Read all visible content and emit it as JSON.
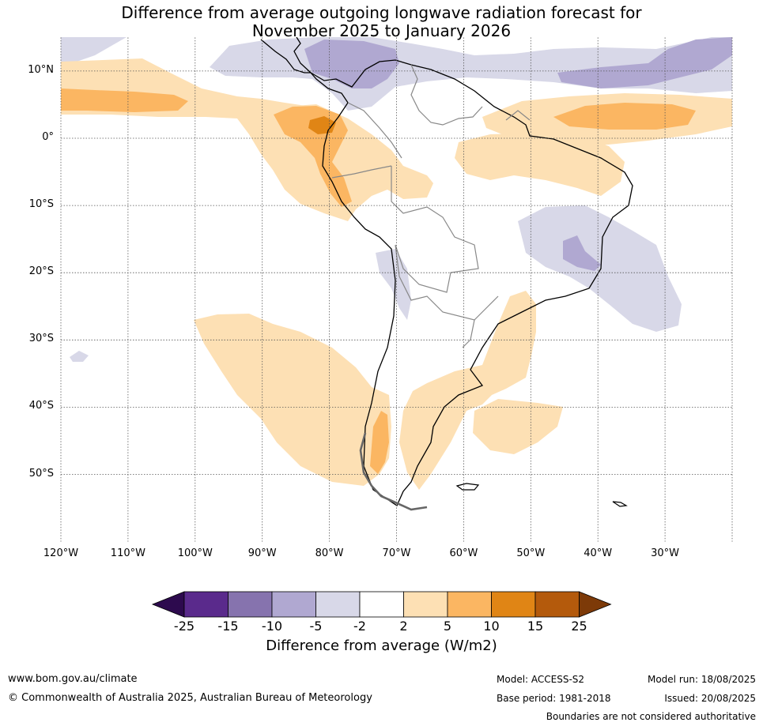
{
  "title": {
    "line1": "Difference from average outgoing longwave radiation forecast for",
    "line2": "November 2025 to January 2026"
  },
  "map": {
    "lat_labels": [
      "10°N",
      "0°",
      "10°S",
      "20°S",
      "30°S",
      "40°S",
      "50°S"
    ],
    "lon_labels": [
      "120°W",
      "110°W",
      "100°W",
      "90°W",
      "80°W",
      "70°W",
      "60°W",
      "50°W",
      "40°W",
      "30°W"
    ],
    "extent": {
      "lon_min": -120,
      "lon_max": -20,
      "lat_min": -60,
      "lat_max": 15
    },
    "grid": true
  },
  "colorbar": {
    "ticks": [
      "-25",
      "-15",
      "-10",
      "-5",
      "-2",
      "2",
      "5",
      "10",
      "15",
      "25"
    ],
    "colors": [
      "#2d0a4e",
      "#5a2a8c",
      "#8673ae",
      "#b0a8d1",
      "#d8d8e8",
      "#ffffff",
      "#fde0b4",
      "#fbb662",
      "#e08515",
      "#b45a0c",
      "#7d3a08"
    ],
    "label": "Difference from average (W/m2)"
  },
  "footer": {
    "website": "www.bom.gov.au/climate",
    "copyright": "© Commonwealth of Australia 2025, Australian Bureau of Meteorology",
    "model": "Model: ACCESS-S2",
    "base_period": "Base period: 1981-2018",
    "model_run": "Model run: 18/08/2025",
    "issued": "Issued: 20/08/2025",
    "disclaimer": "Boundaries are not considered authoritative"
  }
}
